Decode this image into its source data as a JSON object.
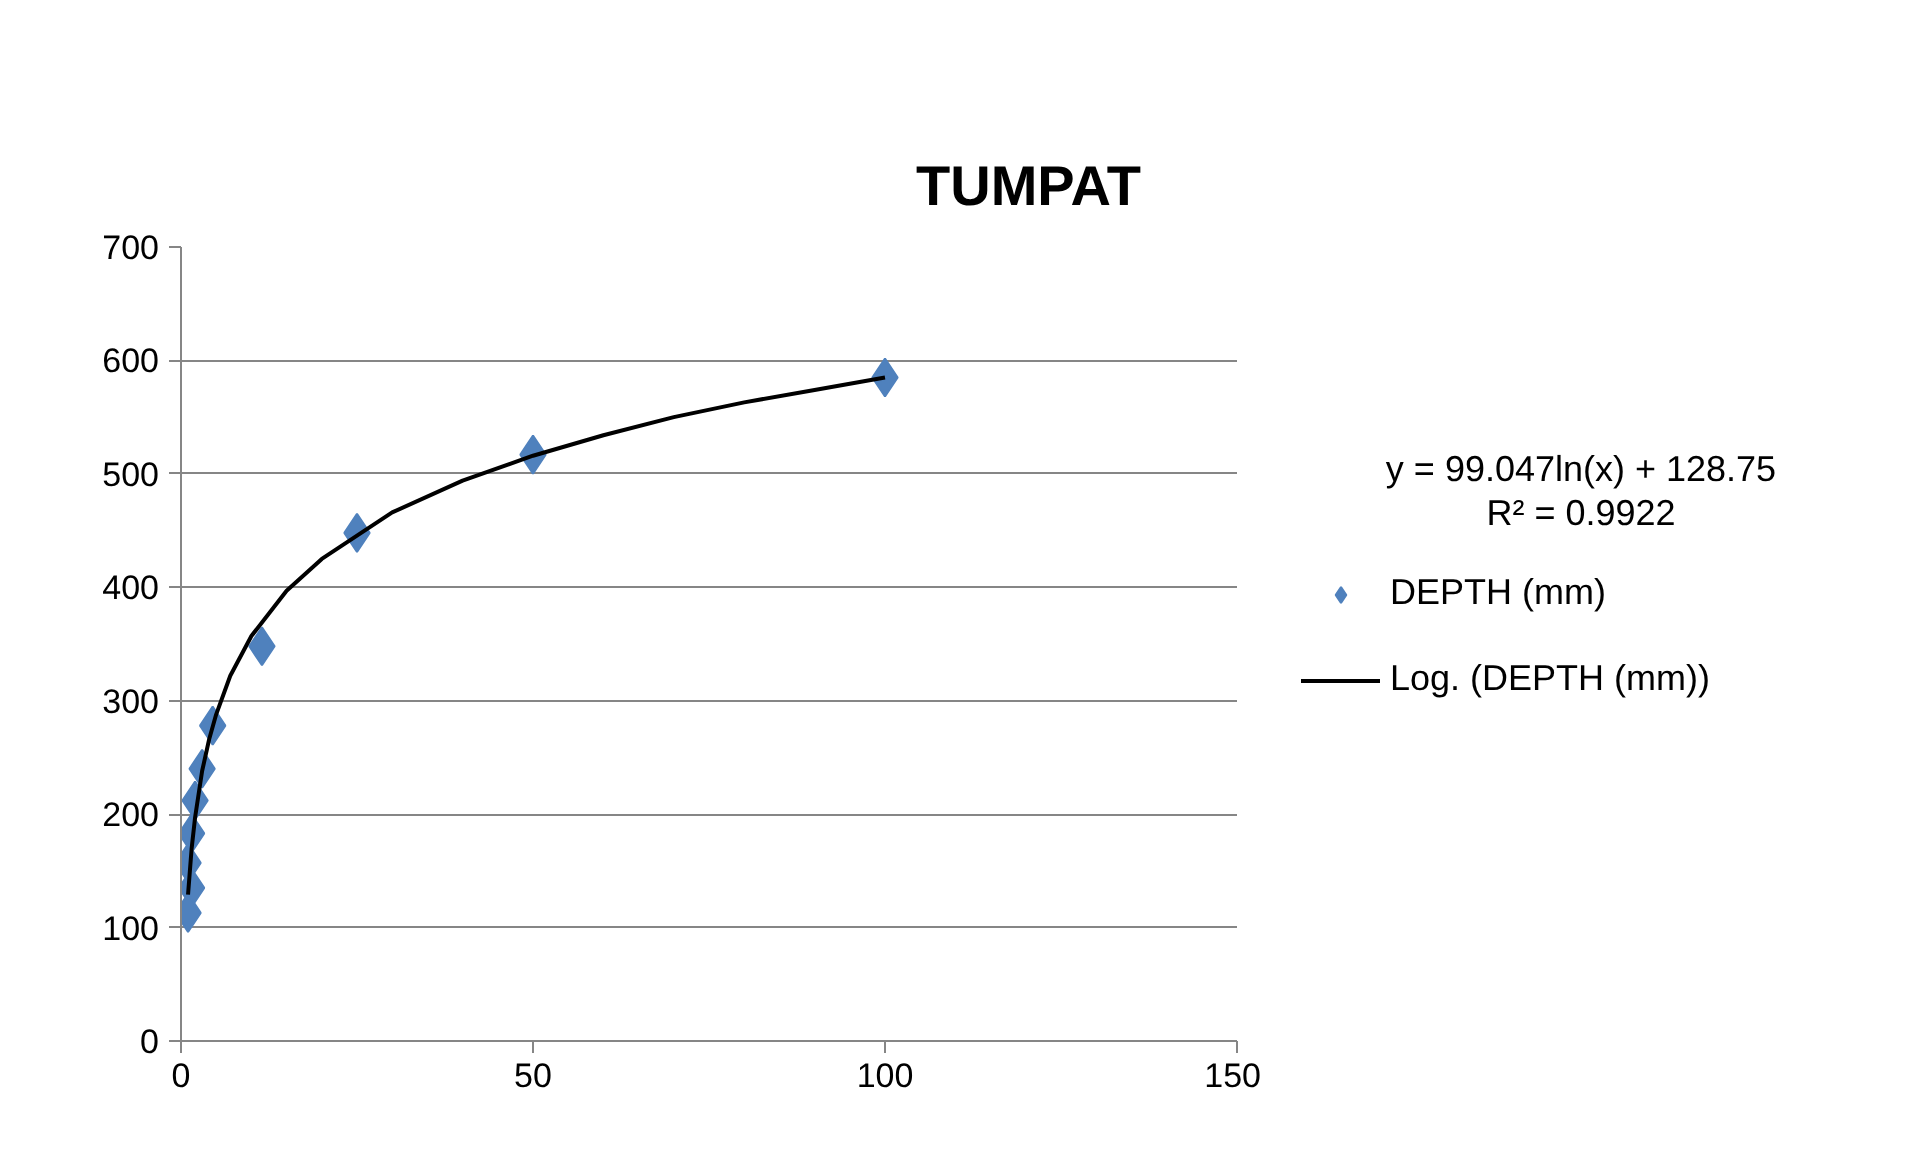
{
  "chart_data": {
    "type": "scatter",
    "title": "TUMPAT",
    "xlim": [
      0,
      150
    ],
    "xticks": [
      0,
      50,
      100,
      150
    ],
    "ylim": [
      0,
      700
    ],
    "yticks": [
      0,
      100,
      200,
      300,
      400,
      500,
      600,
      700
    ],
    "grid": "y",
    "legend": "right",
    "marker": "diamond",
    "annotations": [
      "y = 99.047ln(x) + 128.75",
      "R² = 0.9922"
    ],
    "series": [
      {
        "name": "DEPTH (mm)",
        "color": "#4f81bd",
        "x": [
          100,
          50,
          25,
          11.5,
          4.5,
          3,
          2,
          1.5,
          1,
          1.5,
          1
        ],
        "values": [
          585,
          517,
          448,
          348,
          278,
          240,
          212,
          183,
          157,
          135,
          113
        ]
      },
      {
        "name": "Log. (DEPTH (mm))",
        "color": "#000000",
        "type": "line",
        "marker": "none",
        "x": [
          1,
          1.5,
          2,
          3,
          4,
          5,
          7,
          10,
          15,
          20,
          30,
          40,
          50,
          60,
          70,
          80,
          90,
          100
        ],
        "values": [
          129,
          169,
          197,
          238,
          266,
          288,
          322,
          357,
          397,
          425,
          466,
          494,
          516,
          534,
          550,
          563,
          574,
          585
        ]
      }
    ]
  }
}
